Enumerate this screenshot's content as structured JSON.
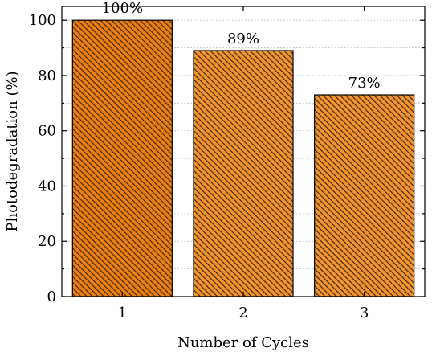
{
  "chart_data": {
    "type": "bar",
    "title": "",
    "xlabel": "Number of Cycles",
    "ylabel": "Photodegradation (%)",
    "categories": [
      "1",
      "2",
      "3"
    ],
    "values": [
      100,
      89,
      73
    ],
    "data_labels": [
      "100%",
      "89%",
      "73%"
    ],
    "ylim": [
      0,
      105
    ],
    "yticks": [
      0,
      20,
      40,
      60,
      80,
      100
    ],
    "grid": "horizontal-dotted",
    "legend": "none",
    "colors": {
      "bar_fill_first": "#e97f12",
      "bar_fill": "#f0922e",
      "hatch": "#3a2410",
      "edge": "#000000",
      "grid": "#c8c8c8"
    }
  }
}
